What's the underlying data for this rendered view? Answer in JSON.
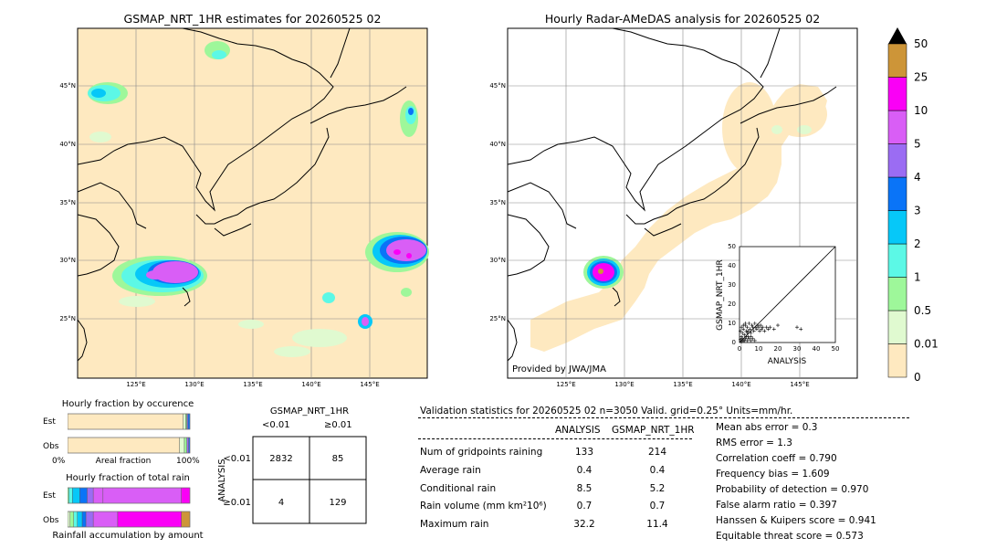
{
  "left_map": {
    "title": "GSMAP_NRT_1HR estimates for 20260525 02",
    "lat_labels": [
      "45°N",
      "40°N",
      "35°N",
      "30°N",
      "25°N"
    ],
    "lon_labels": [
      "125°E",
      "130°E",
      "135°E",
      "140°E",
      "145°E"
    ]
  },
  "right_map": {
    "title": "Hourly Radar-AMeDAS analysis for 20260525 02",
    "lat_labels": [
      "45°N",
      "40°N",
      "35°N",
      "30°N",
      "25°N"
    ],
    "lon_labels": [
      "125°E",
      "130°E",
      "135°E",
      "140°E",
      "145°E"
    ],
    "credit": "Provided by JWA/JMA"
  },
  "colorbar": {
    "levels": [
      "0",
      "0.01",
      "0.5",
      "1",
      "2",
      "3",
      "4",
      "5",
      "10",
      "25",
      "50"
    ],
    "colors": [
      "#fee9c0",
      "#e0fad0",
      "#9ef79a",
      "#5cf8e6",
      "#06c8f8",
      "#0a74f7",
      "#9b6cf3",
      "#d95ef6",
      "#fa00f6",
      "#cd9538"
    ],
    "extend_color": "#000000"
  },
  "scatter": {
    "xlabel": "ANALYSIS",
    "ylabel": "GSMAP_NRT_1HR",
    "ticks": [
      "0",
      "10",
      "20",
      "30",
      "40",
      "50"
    ]
  },
  "chart_data": {
    "type": "scatter",
    "xlabel": "ANALYSIS",
    "ylabel": "GSMAP_NRT_1HR",
    "xlim": [
      0,
      50
    ],
    "ylim": [
      0,
      50
    ],
    "points": [
      [
        0.5,
        1.5
      ],
      [
        1,
        3
      ],
      [
        1.5,
        5
      ],
      [
        2,
        7
      ],
      [
        2.5,
        4
      ],
      [
        3,
        9
      ],
      [
        3.5,
        6
      ],
      [
        4,
        8
      ],
      [
        4.5,
        3
      ],
      [
        5,
        10
      ],
      [
        5.5,
        7
      ],
      [
        6,
        5
      ],
      [
        6.5,
        9
      ],
      [
        7,
        8
      ],
      [
        7.5,
        6
      ],
      [
        8,
        10
      ],
      [
        8.5,
        8
      ],
      [
        9,
        7
      ],
      [
        9.5,
        9
      ],
      [
        10,
        8
      ],
      [
        10.5,
        6
      ],
      [
        11,
        9
      ],
      [
        11.5,
        7
      ],
      [
        12,
        8
      ],
      [
        13,
        6
      ],
      [
        14,
        8
      ],
      [
        15,
        7
      ],
      [
        16,
        8
      ],
      [
        18,
        7
      ],
      [
        20,
        9
      ],
      [
        30,
        8
      ],
      [
        32,
        7
      ],
      [
        1,
        0.5
      ],
      [
        2,
        1
      ],
      [
        3,
        2
      ],
      [
        4,
        1
      ],
      [
        5,
        2
      ],
      [
        6,
        1
      ],
      [
        7,
        2
      ],
      [
        8,
        1
      ],
      [
        0.5,
        6
      ],
      [
        1,
        8
      ],
      [
        2,
        9
      ],
      [
        3,
        10
      ],
      [
        4,
        5
      ],
      [
        1.5,
        2
      ],
      [
        2.5,
        1
      ],
      [
        3.5,
        3
      ],
      [
        4.5,
        6
      ],
      [
        6,
        3
      ]
    ],
    "diagonal": true
  },
  "occurrence": {
    "title": "Hourly fraction by occurence",
    "est_label": "Est",
    "obs_label": "Obs",
    "axis_left": "0%",
    "axis_mid": "Areal fraction",
    "axis_right": "100%",
    "est_fractions": [
      0.945,
      0.02,
      0.01,
      0.01,
      0.015
    ],
    "obs_fractions": [
      0.915,
      0.04,
      0.02,
      0.015,
      0.01
    ],
    "colors": [
      "#fee9c0",
      "#e0fad0",
      "#9ef79a",
      "#9b6cf3",
      "#0a74f7"
    ]
  },
  "total_rain": {
    "title": "Hourly fraction of total rain",
    "est_label": "Est",
    "obs_label": "Obs",
    "footer": "Rainfall accumulation by amount",
    "est_fractions": [
      0.01,
      0.03,
      0.06,
      0.06,
      0.05,
      0.08,
      0.64,
      0.07
    ],
    "obs_fractions": [
      0.02,
      0.03,
      0.03,
      0.04,
      0.03,
      0.06,
      0.2,
      0.52,
      0.07
    ],
    "est_colors": [
      "#9ef79a",
      "#5cf8e6",
      "#06c8f8",
      "#0a74f7",
      "#9b6cf3",
      "#d95ef6",
      "#d95ef6",
      "#fa00f6"
    ],
    "obs_colors": [
      "#e0fad0",
      "#9ef79a",
      "#5cf8e6",
      "#06c8f8",
      "#0a74f7",
      "#9b6cf3",
      "#d95ef6",
      "#fa00f6",
      "#cd9538"
    ]
  },
  "contingency": {
    "title": "GSMAP_NRT_1HR",
    "col1": "<0.01",
    "col2": "≥0.01",
    "row_axis": "ANALYSIS",
    "row1": "<0.01",
    "row2": "≥0.01",
    "a": "2832",
    "b": "85",
    "c": "4",
    "d": "129"
  },
  "validation": {
    "header": "Validation statistics for 20260525 02  n=3050 Valid. grid=0.25° Units=mm/hr.",
    "col_analysis": "ANALYSIS",
    "col_gsmap": "GSMAP_NRT_1HR",
    "rows": [
      {
        "label": "Num of gridpoints raining",
        "analysis": "133",
        "gsmap": "214"
      },
      {
        "label": "Average rain",
        "analysis": "0.4",
        "gsmap": "0.4"
      },
      {
        "label": "Conditional rain",
        "analysis": "8.5",
        "gsmap": "5.2"
      },
      {
        "label": "Rain volume (mm km²10⁶)",
        "analysis": "0.7",
        "gsmap": "0.7"
      },
      {
        "label": "Maximum rain",
        "analysis": "32.2",
        "gsmap": "11.4"
      }
    ],
    "scores": [
      "Mean abs error =    0.3",
      "RMS error =    1.3",
      "Correlation coeff =  0.790",
      "Frequency bias =  1.609",
      "Probability of detection =  0.970",
      "False alarm ratio =  0.397",
      "Hanssen & Kuipers score =  0.941",
      "Equitable threat score =  0.573"
    ]
  }
}
